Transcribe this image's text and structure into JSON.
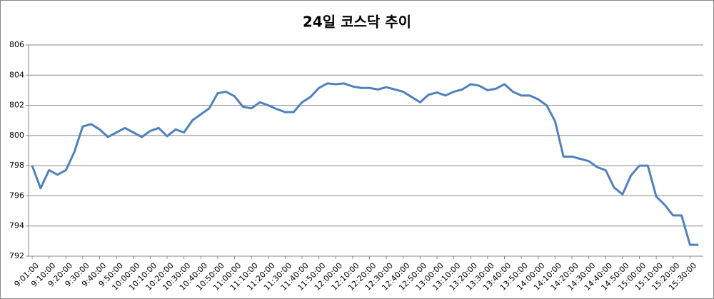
{
  "chart_data": {
    "type": "line",
    "title": "24일 코스닥 추이",
    "categories": [
      "9:01:00",
      null,
      "9:10:00",
      null,
      "9:20:00",
      null,
      "9:30:00",
      null,
      "9:40:00",
      null,
      "9:50:00",
      null,
      "10:00:00",
      null,
      "10:10:00",
      null,
      "10:20:00",
      null,
      "10:30:00",
      null,
      "10:40:00",
      null,
      "10:50:00",
      null,
      "11:00:00",
      null,
      "11:10:00",
      null,
      "11:20:00",
      null,
      "11:30:00",
      null,
      "11:40:00",
      null,
      "11:50:00",
      null,
      "12:00:00",
      null,
      "12:10:00",
      null,
      "12:20:00",
      null,
      "12:30:00",
      null,
      "12:40:00",
      null,
      "12:50:00",
      null,
      "13:00:00",
      null,
      "13:10:00",
      null,
      "13:20:00",
      null,
      "13:30:00",
      null,
      "13:40:00",
      null,
      "13:50:00",
      null,
      "14:00:00",
      null,
      "14:10:00",
      null,
      "14:20:00",
      null,
      "14:30:00",
      null,
      "14:40:00",
      null,
      "14:50:00",
      null,
      "15:00:00",
      null,
      "15:10:00",
      null,
      "15:20:00",
      null,
      "15:30:00",
      null
    ],
    "series": [
      {
        "name": "코스닥",
        "color": "#4f81bd",
        "values": [
          798.0,
          796.5,
          797.7,
          797.4,
          797.7,
          798.9,
          800.6,
          800.75,
          800.4,
          799.9,
          800.2,
          800.5,
          800.2,
          799.9,
          800.3,
          800.5,
          799.95,
          800.4,
          800.2,
          801.0,
          801.4,
          801.8,
          802.8,
          802.9,
          802.6,
          801.9,
          801.8,
          802.2,
          802.0,
          801.75,
          801.55,
          801.55,
          802.2,
          802.55,
          803.15,
          803.45,
          803.4,
          803.45,
          803.25,
          803.15,
          803.15,
          803.05,
          803.2,
          803.05,
          802.9,
          802.55,
          802.2,
          802.7,
          802.85,
          802.65,
          802.9,
          803.05,
          803.4,
          803.3,
          803.0,
          803.1,
          803.4,
          802.9,
          802.65,
          802.65,
          802.4,
          802.0,
          800.95,
          798.6,
          798.6,
          798.45,
          798.3,
          797.9,
          797.7,
          796.55,
          796.1,
          797.35,
          798.0,
          798.0,
          795.95,
          795.4,
          794.7,
          794.7,
          792.75,
          792.75
        ]
      }
    ],
    "ylim": [
      792,
      806
    ],
    "yticks": [
      792,
      794,
      796,
      798,
      800,
      802,
      804,
      806
    ],
    "grid": true
  }
}
